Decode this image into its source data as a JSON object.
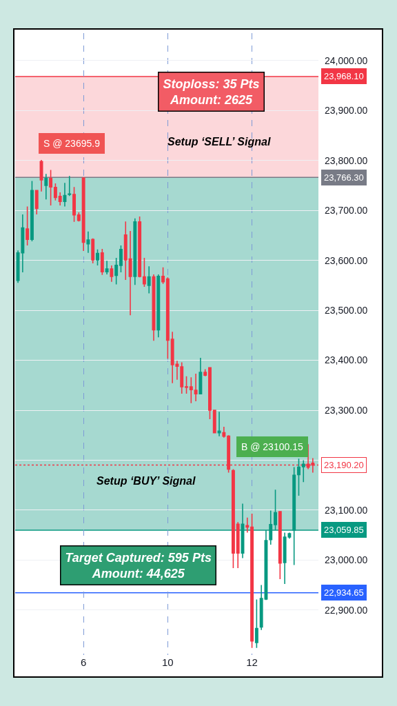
{
  "chart_data": {
    "type": "candlestick",
    "categories": [
      null,
      null,
      null,
      null,
      null,
      null,
      null,
      null,
      null,
      null,
      null,
      null,
      null,
      null,
      "6",
      null,
      null,
      null,
      null,
      null,
      null,
      null,
      null,
      null,
      null,
      null,
      null,
      null,
      null,
      null,
      null,
      null,
      "10",
      null,
      null,
      null,
      null,
      null,
      null,
      null,
      null,
      null,
      null,
      null,
      null,
      null,
      null,
      null,
      null,
      null,
      "12",
      null,
      null,
      null,
      null,
      null,
      null,
      null,
      null,
      null,
      null,
      null,
      null,
      null
    ],
    "ohlc": [
      [
        23560,
        23620,
        23555,
        23615
      ],
      [
        23615,
        23692,
        23576,
        23665
      ],
      [
        23663,
        23708,
        23630,
        23642
      ],
      [
        23642,
        23759,
        23638,
        23740
      ],
      [
        23740,
        23741,
        23692,
        23704
      ],
      [
        23798,
        23801,
        23738,
        23761
      ],
      [
        23750,
        23773,
        23722,
        23764
      ],
      [
        23764,
        23781,
        23710,
        23747
      ],
      [
        23746,
        23754,
        23720,
        23726
      ],
      [
        23728,
        23736,
        23710,
        23718
      ],
      [
        23718,
        23755,
        23708,
        23730
      ],
      [
        23732,
        23769,
        23729,
        23733
      ],
      [
        23732,
        23747,
        23677,
        23691
      ],
      [
        23691,
        23696,
        23678,
        23680
      ],
      [
        23765,
        23766,
        23619,
        23636
      ],
      [
        23633,
        23658,
        23615,
        23641
      ],
      [
        23642,
        23644,
        23594,
        23601
      ],
      [
        23601,
        23622,
        23590,
        23614
      ],
      [
        23615,
        23623,
        23571,
        23577
      ],
      [
        23577,
        23599,
        23572,
        23583
      ],
      [
        23583,
        23590,
        23557,
        23568
      ],
      [
        23570,
        23605,
        23552,
        23590
      ],
      [
        23590,
        23630,
        23576,
        23622
      ],
      [
        23651,
        23678,
        23561,
        23601
      ],
      [
        23603,
        23659,
        23490,
        23568
      ],
      [
        23568,
        23684,
        23551,
        23677
      ],
      [
        23677,
        23688,
        23566,
        23568
      ],
      [
        23567,
        23605,
        23547,
        23553
      ],
      [
        23550,
        23588,
        23534,
        23567
      ],
      [
        23567,
        23572,
        23439,
        23461
      ],
      [
        23461,
        23572,
        23446,
        23568
      ],
      [
        23568,
        23586,
        23553,
        23557
      ],
      [
        23563,
        23566,
        23403,
        23440
      ],
      [
        23442,
        23457,
        23354,
        23391
      ],
      [
        23392,
        23399,
        23361,
        23388
      ],
      [
        23387,
        23396,
        23333,
        23347
      ],
      [
        23347,
        23368,
        23333,
        23346
      ],
      [
        23347,
        23366,
        23314,
        23341
      ],
      [
        23340,
        23373,
        23318,
        23333
      ],
      [
        23333,
        23405,
        23332,
        23376
      ],
      [
        23376,
        23382,
        23368,
        23370
      ],
      [
        23385,
        23386,
        23282,
        23300
      ],
      [
        23300,
        23301,
        23254,
        23255
      ],
      [
        23255,
        23297,
        23248,
        23258
      ],
      [
        23255,
        23267,
        23245,
        23248
      ],
      [
        23248,
        23250,
        23175,
        23182
      ],
      [
        23179,
        23182,
        22984,
        23014
      ],
      [
        23072,
        23076,
        22984,
        23014
      ],
      [
        23014,
        23113,
        23004,
        23072
      ],
      [
        23069,
        23085,
        23055,
        23066
      ],
      [
        23066,
        23093,
        22824,
        22838
      ],
      [
        22835,
        22921,
        22824,
        22863
      ],
      [
        22866,
        22950,
        22860,
        22923
      ],
      [
        22922,
        23060,
        22920,
        23039
      ],
      [
        23041,
        23099,
        23031,
        23071
      ],
      [
        23071,
        23141,
        23060,
        23095
      ],
      [
        23097,
        23098,
        22962,
        22994
      ],
      [
        22995,
        23055,
        22952,
        23046
      ],
      [
        23046,
        23055,
        23043,
        23053
      ],
      [
        23060,
        23186,
        22990,
        23170
      ],
      [
        23171,
        23203,
        23129,
        23186
      ],
      [
        23187,
        23200,
        23156,
        23192
      ],
      [
        23192,
        23232,
        23182,
        23186
      ],
      [
        23194,
        23204,
        23175,
        23190.2
      ]
    ],
    "ylim": [
      22810,
      24055
    ],
    "yticks": [
      {
        "value": 22900,
        "label": "22,900.00"
      },
      {
        "value": 23000,
        "label": "23,000.00"
      },
      {
        "value": 23100,
        "label": "23,100.00"
      },
      {
        "value": 23200,
        "label": null
      },
      {
        "value": 23300,
        "label": "23,300.00"
      },
      {
        "value": 23400,
        "label": "23,400.00"
      },
      {
        "value": 23500,
        "label": "23,500.00"
      },
      {
        "value": 23600,
        "label": "23,600.00"
      },
      {
        "value": 23700,
        "label": "23,700.00"
      },
      {
        "value": 23800,
        "label": "23,800.00"
      },
      {
        "value": 23900,
        "label": "23,900.00"
      },
      {
        "value": 24000,
        "label": "24,000.00"
      }
    ],
    "grid": true,
    "bands": [
      {
        "axis": "y",
        "from": 23766.3,
        "to": 23968.1,
        "color": "#fcd7da"
      },
      {
        "axis": "y",
        "from": 23059.85,
        "to": 23766.3,
        "color": "#a6d9d0"
      }
    ],
    "ref_lines": [
      {
        "axis": "y",
        "value": 23968.1,
        "label": "23,968.10",
        "color": "#f23645",
        "line_style": "solid"
      },
      {
        "axis": "y",
        "value": 23766.3,
        "label": "23,766.30",
        "color": "#787b86",
        "line_style": "solid"
      },
      {
        "axis": "y",
        "value": 23190.2,
        "label": "23,190.20",
        "color": "#f23645",
        "line_style": "dotted"
      },
      {
        "axis": "y",
        "value": 23059.85,
        "label": "23,059.85",
        "color": "#089981",
        "line_style": "solid"
      },
      {
        "axis": "y",
        "value": 22934.65,
        "label": "22,934.65",
        "color": "#2962ff",
        "line_style": "solid"
      }
    ],
    "annotations": [
      "Stoploss: 35 Pts\nAmount: 2625",
      "S @ 23695.9",
      "Setup ‘SELL’ Signal",
      "B @ 23100.15",
      "Setup ‘BUY’ Signal",
      "Target Captured: 595 Pts\nAmount: 44,625"
    ]
  }
}
